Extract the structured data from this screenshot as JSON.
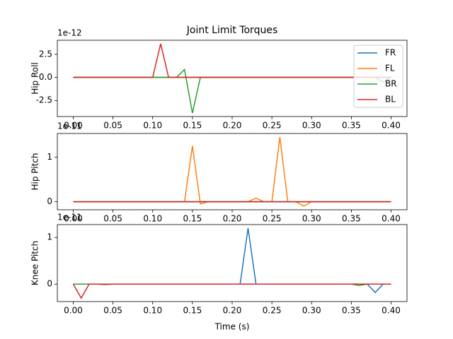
{
  "chart_data": [
    {
      "type": "line",
      "title": "Joint Limit Torques",
      "ylabel": "Hip Roll",
      "offset_text": "1e-12",
      "x": [
        0,
        0.01,
        0.02,
        0.03,
        0.04,
        0.05,
        0.06,
        0.07,
        0.08,
        0.09,
        0.1,
        0.11,
        0.12,
        0.13,
        0.14,
        0.15,
        0.16,
        0.17,
        0.18,
        0.19,
        0.2,
        0.21,
        0.22,
        0.23,
        0.24,
        0.25,
        0.26,
        0.27,
        0.28,
        0.29,
        0.3,
        0.31,
        0.32,
        0.33,
        0.34,
        0.35,
        0.36,
        0.37,
        0.38,
        0.39,
        0.4
      ],
      "xlim": [
        -0.02,
        0.42
      ],
      "xticks": [
        {
          "value": 0,
          "label": "0.00"
        },
        0.05,
        {
          "value": 0.1,
          "label": "0.10"
        },
        0.15,
        {
          "value": 0.2,
          "label": "0.20"
        },
        0.25,
        {
          "value": 0.3,
          "label": "0.30"
        },
        0.35,
        {
          "value": 0.4,
          "label": "0.40"
        }
      ],
      "ylim": [
        -4.24,
        4.02
      ],
      "yticks": [
        -2.5,
        {
          "value": 0,
          "label": "0.0"
        },
        2.5
      ],
      "legend": "upper right",
      "series": [
        {
          "name": "FR",
          "color": "#1f77b4",
          "values": [
            0,
            0,
            0,
            0,
            0,
            0,
            0,
            0,
            0,
            0,
            0,
            0,
            0,
            0,
            0,
            0,
            0,
            0,
            0,
            0,
            0,
            0,
            0,
            0,
            0,
            0,
            0,
            0,
            0,
            0,
            0,
            0,
            0,
            0,
            0,
            0,
            0,
            0,
            0,
            0,
            0
          ]
        },
        {
          "name": "FL",
          "color": "#ff7f0e",
          "values": [
            0,
            0,
            0,
            0,
            0,
            0,
            0,
            0,
            0,
            0,
            0,
            0,
            0,
            0,
            0,
            0,
            0,
            0,
            0,
            0,
            0,
            0,
            0,
            0,
            0,
            0,
            0,
            0,
            0,
            0,
            0,
            0,
            0,
            0,
            0,
            0,
            0,
            0,
            0,
            0,
            0
          ]
        },
        {
          "name": "BR",
          "color": "#2ca02c",
          "values": [
            0,
            0,
            0,
            0,
            0,
            0,
            0,
            0,
            0,
            0,
            0,
            0,
            0,
            0,
            0.85,
            -3.86,
            0,
            0,
            0,
            0,
            0,
            0,
            0,
            0,
            0,
            0,
            0,
            0,
            0,
            0,
            0,
            0,
            0,
            0,
            0,
            0,
            0,
            0,
            0,
            -0.5,
            0
          ]
        },
        {
          "name": "BL",
          "color": "#d62728",
          "values": [
            0,
            0,
            0,
            0,
            0,
            0,
            0,
            0,
            0,
            0,
            0,
            3.64,
            0,
            0,
            0,
            0,
            0,
            0,
            0,
            0,
            0,
            0,
            0,
            0,
            0,
            0,
            0,
            0,
            0,
            0,
            0,
            0,
            0,
            0,
            0,
            0,
            0,
            0,
            0,
            0,
            0
          ]
        }
      ]
    },
    {
      "type": "line",
      "ylabel": "Hip Pitch",
      "offset_text": "1e-11",
      "x": [
        0,
        0.01,
        0.02,
        0.03,
        0.04,
        0.05,
        0.06,
        0.07,
        0.08,
        0.09,
        0.1,
        0.11,
        0.12,
        0.13,
        0.14,
        0.15,
        0.16,
        0.17,
        0.18,
        0.19,
        0.2,
        0.21,
        0.22,
        0.23,
        0.24,
        0.25,
        0.26,
        0.27,
        0.28,
        0.29,
        0.3,
        0.31,
        0.32,
        0.33,
        0.34,
        0.35,
        0.36,
        0.37,
        0.38,
        0.39,
        0.4
      ],
      "xlim": [
        -0.02,
        0.42
      ],
      "xticks": [
        {
          "value": 0,
          "label": "0.00"
        },
        0.05,
        {
          "value": 0.1,
          "label": "0.10"
        },
        0.15,
        {
          "value": 0.2,
          "label": "0.20"
        },
        0.25,
        {
          "value": 0.3,
          "label": "0.30"
        },
        0.35,
        {
          "value": 0.4,
          "label": "0.40"
        }
      ],
      "ylim": [
        -0.18,
        1.53
      ],
      "yticks": [
        0,
        1
      ],
      "series": [
        {
          "color": "#1f77b4",
          "values": [
            0,
            0,
            0,
            0,
            0,
            0,
            0,
            0,
            0,
            0,
            0,
            0,
            0,
            0,
            0,
            0,
            0,
            0,
            0,
            0,
            0,
            0,
            0,
            0,
            0,
            0,
            0,
            0,
            0,
            0,
            0,
            0,
            0,
            0,
            0,
            0,
            0,
            0,
            0,
            0,
            0
          ]
        },
        {
          "color": "#ff7f0e",
          "values": [
            0,
            0,
            0,
            0,
            0,
            0,
            0,
            0,
            0,
            0,
            0,
            0,
            0,
            0,
            0,
            1.25,
            -0.05,
            0,
            0,
            0,
            0,
            0,
            0,
            0.08,
            0,
            0,
            1.45,
            0,
            0,
            -0.1,
            0,
            0,
            0,
            0,
            0,
            0,
            0,
            0,
            0,
            0,
            0
          ]
        },
        {
          "color": "#2ca02c",
          "values": [
            0,
            0,
            0,
            0,
            0,
            0,
            0,
            0,
            0,
            0,
            0,
            0,
            0,
            0,
            0,
            0,
            0,
            0,
            0,
            0,
            0,
            0,
            0,
            0,
            0,
            0,
            0,
            0,
            0,
            0,
            0,
            0,
            0,
            0,
            0,
            0,
            0,
            0,
            0,
            0,
            0
          ]
        },
        {
          "color": "#d62728",
          "values": [
            0,
            0,
            0,
            0,
            0,
            0,
            0,
            0,
            0,
            0,
            0,
            0,
            0,
            0,
            0,
            0,
            0,
            0,
            0,
            0,
            0,
            0,
            0,
            0,
            0,
            0,
            0,
            0,
            0,
            0,
            0,
            0,
            0,
            0,
            0,
            0,
            0,
            0,
            0,
            0,
            0
          ]
        }
      ]
    },
    {
      "type": "line",
      "ylabel": "Knee Pitch",
      "xlabel": "Time (s)",
      "offset_text": "1e-11",
      "x": [
        0,
        0.01,
        0.02,
        0.03,
        0.04,
        0.05,
        0.06,
        0.07,
        0.08,
        0.09,
        0.1,
        0.11,
        0.12,
        0.13,
        0.14,
        0.15,
        0.16,
        0.17,
        0.18,
        0.19,
        0.2,
        0.21,
        0.22,
        0.23,
        0.24,
        0.25,
        0.26,
        0.27,
        0.28,
        0.29,
        0.3,
        0.31,
        0.32,
        0.33,
        0.34,
        0.35,
        0.36,
        0.37,
        0.38,
        0.39,
        0.4
      ],
      "xlim": [
        -0.02,
        0.42
      ],
      "xticks": [
        {
          "value": 0,
          "label": "0.00"
        },
        0.05,
        {
          "value": 0.1,
          "label": "0.10"
        },
        0.15,
        {
          "value": 0.2,
          "label": "0.20"
        },
        0.25,
        {
          "value": 0.3,
          "label": "0.30"
        },
        0.35,
        {
          "value": 0.4,
          "label": "0.40"
        }
      ],
      "ylim": [
        -0.375,
        1.275
      ],
      "yticks": [
        0,
        1
      ],
      "series": [
        {
          "color": "#1f77b4",
          "values": [
            0,
            0,
            0,
            0,
            0,
            0,
            0,
            0,
            0,
            0,
            0,
            0,
            0,
            0,
            0,
            0,
            0,
            0,
            0,
            0,
            0,
            0,
            1.2,
            0,
            0,
            0,
            0,
            0,
            0,
            0,
            0,
            0,
            0,
            0,
            0,
            0,
            0,
            0,
            -0.18,
            0,
            0
          ]
        },
        {
          "color": "#ff7f0e",
          "values": [
            0,
            0,
            0,
            0,
            0,
            0,
            0,
            0,
            0,
            0,
            0,
            0,
            0,
            0,
            0,
            0,
            0,
            0,
            0,
            0,
            0,
            0,
            0,
            0,
            0,
            0,
            0,
            0,
            0,
            0,
            0,
            0,
            0,
            0,
            0,
            0,
            0,
            0,
            0,
            0,
            0
          ]
        },
        {
          "color": "#2ca02c",
          "values": [
            0,
            0,
            0,
            0,
            0,
            0,
            0,
            0,
            0,
            0,
            0,
            0,
            0,
            0,
            0,
            0,
            0,
            0,
            0,
            0,
            0,
            0,
            0,
            0,
            0,
            0,
            0,
            0,
            0,
            0,
            0,
            0,
            0,
            0,
            0,
            0,
            -0.03,
            0,
            0,
            0,
            0
          ]
        },
        {
          "color": "#d62728",
          "values": [
            0,
            -0.3,
            0,
            0,
            -0.01,
            0,
            0,
            0,
            0,
            0,
            0,
            0,
            0,
            0,
            0,
            0,
            0,
            0,
            0,
            0,
            0,
            0,
            0,
            0,
            0,
            0,
            0,
            0,
            0,
            0,
            0,
            0,
            0,
            0,
            0,
            0,
            0,
            0,
            0,
            0,
            0
          ]
        }
      ]
    }
  ]
}
